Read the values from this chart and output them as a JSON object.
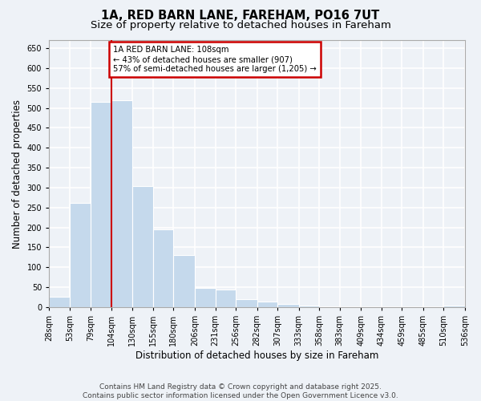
{
  "title_line1": "1A, RED BARN LANE, FAREHAM, PO16 7UT",
  "title_line2": "Size of property relative to detached houses in Fareham",
  "xlabel": "Distribution of detached houses by size in Fareham",
  "ylabel": "Number of detached properties",
  "bar_color": "#c5d9ec",
  "bar_edge_color": "#c5d9ec",
  "property_line_x": 104,
  "property_line_color": "#cc0000",
  "annotation_text": "1A RED BARN LANE: 108sqm\n← 43% of detached houses are smaller (907)\n57% of semi-detached houses are larger (1,205) →",
  "annotation_box_color": "#cc0000",
  "annotation_text_color": "#000000",
  "footnote1": "Contains HM Land Registry data © Crown copyright and database right 2025.",
  "footnote2": "Contains public sector information licensed under the Open Government Licence v3.0.",
  "bins": [
    28,
    53,
    79,
    104,
    130,
    155,
    180,
    206,
    231,
    256,
    282,
    307,
    333,
    358,
    383,
    409,
    434,
    459,
    485,
    510,
    536
  ],
  "counts": [
    27,
    262,
    516,
    519,
    303,
    196,
    130,
    49,
    45,
    20,
    14,
    8,
    5,
    3,
    1,
    1,
    0,
    1,
    0,
    5
  ],
  "ylim": [
    0,
    670
  ],
  "yticks": [
    0,
    50,
    100,
    150,
    200,
    250,
    300,
    350,
    400,
    450,
    500,
    550,
    600,
    650
  ],
  "background_color": "#eef2f7",
  "grid_color": "#ffffff",
  "title_fontsize": 10.5,
  "subtitle_fontsize": 9.5,
  "axis_label_fontsize": 8.5,
  "tick_fontsize": 7,
  "footnote_fontsize": 6.5
}
